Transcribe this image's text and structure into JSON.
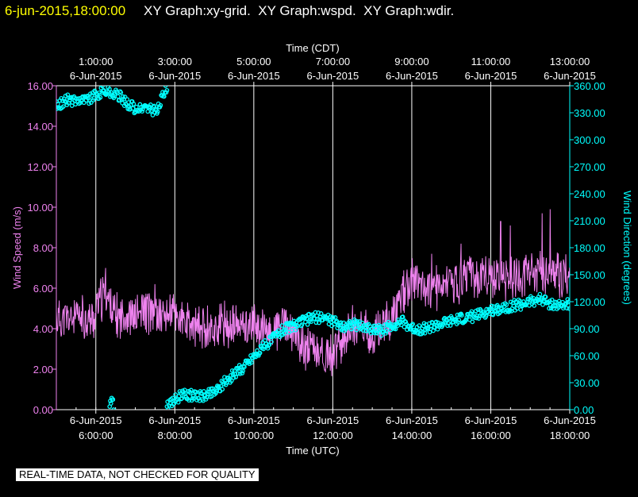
{
  "header": {
    "timestamp": "6-jun-2015,18:00:00",
    "graph_titles": "XY Graph:xy-grid.  XY Graph:wspd.  XY Graph:wdir."
  },
  "footer": {
    "disclaimer": "REAL-TIME DATA, NOT CHECKED FOR QUALITY"
  },
  "colors": {
    "background": "#000000",
    "timestamp": "#ffff00",
    "text": "#ffffff",
    "wind_speed": "#ee82ee",
    "wind_direction": "#00ffff",
    "grid": "#ffffff"
  },
  "chart_data": {
    "type": "line",
    "x_axis_bottom": {
      "label": "Time (UTC)",
      "range": [
        5.0,
        18.0
      ],
      "ticks": [
        {
          "value": 6,
          "line1": "6-Jun-2015",
          "line2": "6:00:00"
        },
        {
          "value": 8,
          "line1": "6-Jun-2015",
          "line2": "8:00:00"
        },
        {
          "value": 10,
          "line1": "6-Jun-2015",
          "line2": "10:00:00"
        },
        {
          "value": 12,
          "line1": "6-Jun-2015",
          "line2": "12:00:00"
        },
        {
          "value": 14,
          "line1": "6-Jun-2015",
          "line2": "14:00:00"
        },
        {
          "value": 16,
          "line1": "6-Jun-2015",
          "line2": "16:00:00"
        },
        {
          "value": 18,
          "line1": "6-Jun-2015",
          "line2": "18:00:00"
        }
      ]
    },
    "x_axis_top": {
      "label": "Time (CDT)",
      "ticks": [
        {
          "value": 6,
          "line1": "1:00:00",
          "line2": "6-Jun-2015"
        },
        {
          "value": 8,
          "line1": "3:00:00",
          "line2": "6-Jun-2015"
        },
        {
          "value": 10,
          "line1": "5:00:00",
          "line2": "6-Jun-2015"
        },
        {
          "value": 12,
          "line1": "7:00:00",
          "line2": "6-Jun-2015"
        },
        {
          "value": 14,
          "line1": "9:00:00",
          "line2": "6-Jun-2015"
        },
        {
          "value": 16,
          "line1": "11:00:00",
          "line2": "6-Jun-2015"
        },
        {
          "value": 18,
          "line1": "13:00:00",
          "line2": "6-Jun-2015"
        }
      ]
    },
    "y_axis_left": {
      "label": "Wind Speed (m/s)",
      "range": [
        0,
        16
      ],
      "ticks": [
        "0.00",
        "2.00",
        "4.00",
        "6.00",
        "8.00",
        "10.00",
        "12.00",
        "14.00",
        "16.00"
      ]
    },
    "y_axis_right": {
      "label": "Wind Direction (degrees)",
      "range": [
        0,
        360
      ],
      "ticks": [
        "0.00",
        "30.00",
        "60.00",
        "90.00",
        "120.00",
        "150.00",
        "180.00",
        "210.00",
        "240.00",
        "270.00",
        "300.00",
        "330.00",
        "360.00"
      ]
    },
    "grid": true,
    "vertical_gridlines": [
      6,
      8,
      10,
      12,
      14,
      16,
      18
    ],
    "series": [
      {
        "axis": "left",
        "style": "line",
        "x": [
          6.0,
          6.25,
          6.5,
          6.75,
          7.0,
          7.25,
          7.5,
          7.75,
          8.0,
          8.25,
          8.5,
          8.75,
          9.0,
          9.25,
          9.5,
          9.75,
          10.0,
          10.25,
          10.5,
          10.75,
          11.0,
          11.25,
          11.5,
          11.75,
          12.0,
          12.25,
          12.5,
          12.75,
          13.0,
          13.25,
          13.5,
          13.75,
          14.0,
          14.25,
          14.5,
          14.75,
          15.0,
          15.25,
          15.5,
          15.75,
          16.0,
          16.25,
          16.5,
          16.75,
          17.0,
          17.25,
          17.5,
          17.75,
          18.0
        ],
        "values": [
          5.0,
          5.8,
          4.5,
          4.8,
          4.5,
          5.0,
          4.6,
          4.7,
          4.8,
          4.2,
          4.0,
          4.2,
          3.9,
          4.3,
          4.0,
          4.2,
          4.2,
          3.9,
          3.9,
          4.3,
          3.7,
          3.2,
          3.0,
          2.6,
          2.6,
          3.5,
          4.2,
          3.8,
          3.6,
          4.0,
          4.6,
          5.6,
          6.3,
          6.2,
          6.0,
          6.0,
          6.2,
          6.3,
          6.7,
          6.3,
          6.7,
          6.5,
          6.4,
          6.5,
          6.7,
          6.8,
          6.8,
          6.6,
          6.5
        ],
        "peak_highlights": [
          [
            6.25,
            7.0
          ],
          [
            7.5,
            6.2
          ],
          [
            10.6,
            4.8
          ],
          [
            14.5,
            7.7
          ],
          [
            15.25,
            8.2
          ],
          [
            16.25,
            9.3
          ],
          [
            16.5,
            9.1
          ],
          [
            17.3,
            9.7
          ],
          [
            17.5,
            9.9
          ]
        ],
        "fluctuation_amplitude": 1.3
      },
      {
        "axis": "right",
        "style": "markers",
        "segments": [
          {
            "x": [
              5.0,
              5.15,
              5.3,
              5.45,
              5.6,
              5.75,
              5.9,
              6.05,
              6.2,
              6.35,
              6.5,
              6.65,
              6.8,
              6.95,
              7.1,
              7.25,
              7.4,
              7.55,
              7.68,
              7.8
            ],
            "values": [
              338,
              341,
              345,
              343,
              346,
              344,
              347,
              350,
              355,
              352,
              350,
              347,
              340,
              336,
              333,
              336,
              334,
              331,
              348,
              360
            ]
          },
          {
            "x": [
              6.35,
              6.4,
              6.45
            ],
            "values": [
              5,
              8,
              4
            ]
          },
          {
            "x": [
              7.8,
              8.0,
              8.25,
              8.5,
              8.75,
              9.0,
              9.25,
              9.5,
              9.75,
              10.0,
              10.25,
              10.5,
              10.75,
              11.0,
              11.25,
              11.5,
              11.75,
              12.0,
              12.25,
              12.5,
              12.75,
              13.0,
              13.25,
              13.5,
              13.75,
              14.0,
              14.25,
              14.5,
              14.75,
              15.0,
              15.25,
              15.5,
              15.75,
              16.0,
              16.25,
              16.5,
              16.75,
              17.0,
              17.25,
              17.5,
              17.75,
              18.0
            ],
            "values": [
              2,
              12,
              17,
              15,
              16,
              20,
              30,
              40,
              48,
              60,
              70,
              80,
              90,
              93,
              98,
              102,
              103,
              98,
              93,
              95,
              92,
              90,
              88,
              94,
              98,
              90,
              90,
              92,
              95,
              98,
              101,
              103,
              106,
              110,
              113,
              115,
              117,
              120,
              123,
              118,
              115,
              118
            ]
          }
        ],
        "fluctuation_amplitude": 6
      }
    ]
  }
}
